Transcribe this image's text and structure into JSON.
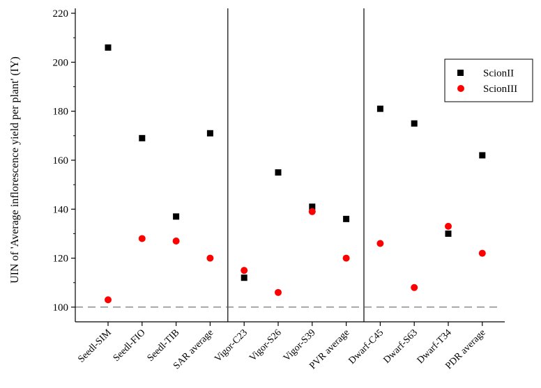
{
  "chart_data": {
    "type": "scatter",
    "title": "",
    "xlabel": "",
    "ylabel": "UIN of 'Average inflorescence yield per plant' (IY)",
    "ylim": [
      94,
      222
    ],
    "yticks": [
      100,
      120,
      140,
      160,
      180,
      200,
      220
    ],
    "reference_line": 100,
    "group_separators_after_index": [
      3,
      7
    ],
    "categories": [
      "Seedl-SIM",
      "Seedl-FIO",
      "Seedl-TIB",
      "SAR average",
      "Vigor-C23",
      "Vigor-S26",
      "Vigor-S39",
      "PVR average",
      "Dwarf-C45",
      "Dwarf-S63",
      "Dwarf-T34",
      "PDR average"
    ],
    "series": [
      {
        "name": "ScionII",
        "marker": "square",
        "color": "#000000",
        "values": [
          206,
          169,
          137,
          171,
          112,
          155,
          141,
          136,
          181,
          175,
          130,
          162
        ]
      },
      {
        "name": "ScionIII",
        "marker": "circle",
        "color": "#ff0000",
        "values": [
          103,
          128,
          127,
          120,
          115,
          106,
          139,
          120,
          126,
          108,
          133,
          122
        ]
      }
    ],
    "legend_position": "top-right",
    "grid": false
  }
}
